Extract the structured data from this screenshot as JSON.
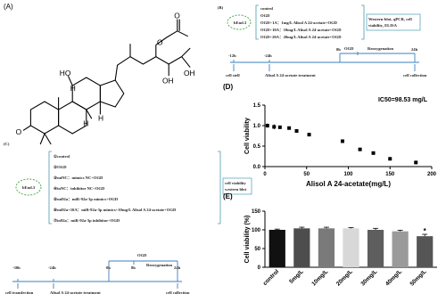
{
  "panel_a": {
    "label": "(A)",
    "atoms": [
      "O",
      "O",
      "HO",
      "OH",
      "OH",
      "H",
      "H",
      "H",
      "O"
    ]
  },
  "panel_b": {
    "label": "(B)",
    "cell": "bEnd.3",
    "groups": [
      "control",
      "OGD",
      "OGD+1A：1mg/L Alisol A 24-acetate+OGD",
      "OGD+10A：10mg/L Alisol A 24-acetate+OGD",
      "OGD+20A：20mg/L Alisol A 24-acetate+OGD"
    ],
    "assays": [
      "Western-blot, qPCR, cell",
      "viability, ELISA"
    ],
    "timeline": {
      "times": [
        "-12h",
        "-24h",
        "0h",
        "24h"
      ],
      "phases": [
        "OGD",
        "Reoxygenation"
      ],
      "events": [
        "cell stell",
        "Alisol A 24-acetate treatment",
        "cell collection"
      ]
    }
  },
  "panel_c": {
    "label": "(C)",
    "cell": "bEnd.3",
    "groups": [
      "①control",
      "②OGD",
      "③miNC：mimics NC+OGD",
      "④inNC：inhibitor NC+OGD",
      "⑤mi92a：miR-92a-3p mimics+OGD",
      "⑥mi92a+10A：miR-92a-3p mimics+10mg/L Alisol A 24-acetate+OGD",
      "⑦in92a：miR-92a-3p inhibitor+OGD"
    ],
    "assays": [
      "cell viability",
      "western blot"
    ],
    "timeline": {
      "times": [
        "-30h",
        "-24h",
        "0h",
        "8h",
        "24h"
      ],
      "phases": [
        "OGD",
        "Reoxygenation"
      ],
      "events": [
        "cell transfection",
        "Alisol A 24-acetate treatment",
        "cell collection"
      ]
    }
  },
  "chart_data": [
    {
      "type": "scatter",
      "label": "(D)",
      "annotation": "IC50=98.53 mg/L",
      "x_label": "Alisol A 24-acetate(mg/L)",
      "y_label": "Cell viability",
      "x": [
        3,
        11,
        18,
        29,
        38,
        53,
        93,
        114,
        130,
        150,
        181
      ],
      "values": [
        1.0,
        0.97,
        0.96,
        0.94,
        0.87,
        0.78,
        0.62,
        0.42,
        0.33,
        0.19,
        0.1
      ],
      "errors": [
        0.05,
        0.06,
        0.04,
        0.03,
        0.03,
        0.03,
        0.02,
        0.03,
        0.02,
        0.02,
        0.02
      ],
      "color": "#000000",
      "xlim": [
        0,
        200
      ],
      "xticks": [
        0,
        50,
        100,
        150,
        200
      ],
      "ylim": [
        0,
        1.5
      ],
      "yticks": [
        {
          "value": 0,
          "label": "0.0"
        },
        {
          "value": 0.5,
          "label": "0.5"
        },
        {
          "value": 1,
          "label": "1.0"
        },
        {
          "value": 1.5,
          "label": "1.5"
        }
      ]
    },
    {
      "type": "bar",
      "label": "(E)",
      "annotation": "*",
      "y_label": "Cell viability (%)",
      "categories": [
        "control",
        "5mg/L",
        "10mg/L",
        "20mg/L",
        "30mg/L",
        "40mg/L",
        "50mg/L"
      ],
      "values": [
        100,
        104,
        104,
        104,
        100,
        96,
        83
      ],
      "errors": [
        2,
        3,
        3,
        2,
        4,
        3,
        5
      ],
      "colors": [
        "#111111",
        "#4d4d4d",
        "#7a7a7a",
        "#d8d8d8",
        "#5e5e5e",
        "#9a9a9a",
        "#555555"
      ],
      "ylim": [
        0,
        150
      ],
      "yticks": [
        0,
        50,
        100,
        150
      ]
    }
  ]
}
